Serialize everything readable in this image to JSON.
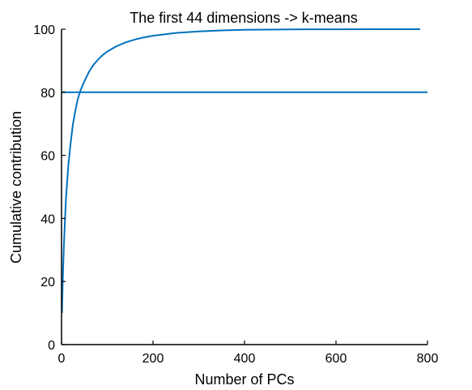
{
  "chart_data": {
    "type": "line",
    "title": "The first 44 dimensions -> k-means",
    "xlabel": "Number of PCs",
    "ylabel": "Cumulative contribution",
    "xlim": [
      0,
      800
    ],
    "ylim": [
      0,
      100
    ],
    "xticks": [
      0,
      200,
      400,
      600,
      800
    ],
    "yticks": [
      0,
      20,
      40,
      60,
      80,
      100
    ],
    "grid": false,
    "series": [
      {
        "color": "#0072BD",
        "x": [
          1,
          2,
          3,
          5,
          8,
          10,
          15,
          20,
          25,
          30,
          35,
          40,
          44,
          50,
          60,
          70,
          80,
          90,
          100,
          120,
          140,
          160,
          180,
          200,
          250,
          300,
          350,
          400,
          450,
          500,
          600,
          700,
          784
        ],
        "y": [
          10,
          16,
          22,
          31,
          41,
          47,
          57,
          64,
          70,
          74,
          77.5,
          80,
          81.5,
          83.5,
          86.5,
          88.7,
          90.4,
          91.8,
          92.9,
          94.6,
          95.8,
          96.7,
          97.4,
          97.9,
          98.8,
          99.3,
          99.6,
          99.8,
          99.88,
          99.94,
          99.98,
          100,
          100
        ]
      },
      {
        "color": "#0072BD",
        "x": [
          0,
          800
        ],
        "y": [
          80,
          80
        ]
      }
    ]
  }
}
